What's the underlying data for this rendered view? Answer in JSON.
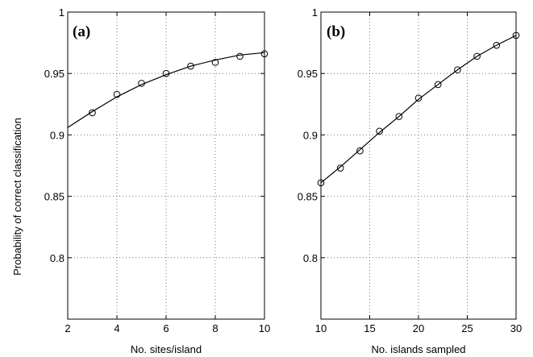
{
  "chart_data": [
    {
      "type": "scatter",
      "panel": "(a)",
      "xlabel": "No. sites/island",
      "ylabel": "Probability of correct classification",
      "xlim": [
        2,
        10
      ],
      "ylim": [
        0.75,
        1
      ],
      "xticks": [
        2,
        4,
        6,
        8,
        10
      ],
      "yticks": [
        0.8,
        0.85,
        0.9,
        0.95,
        1
      ],
      "grid": true,
      "points": {
        "x": [
          3,
          4,
          5,
          6,
          7,
          8,
          9,
          10
        ],
        "y": [
          0.918,
          0.933,
          0.942,
          0.95,
          0.956,
          0.959,
          0.964,
          0.966
        ]
      },
      "fit_curve": {
        "x": [
          2,
          3,
          4,
          5,
          6,
          7,
          8,
          9,
          10
        ],
        "y": [
          0.906,
          0.919,
          0.931,
          0.941,
          0.949,
          0.956,
          0.961,
          0.965,
          0.967
        ]
      }
    },
    {
      "type": "scatter",
      "panel": "(b)",
      "xlabel": "No. islands sampled",
      "ylabel": "",
      "xlim": [
        10,
        30
      ],
      "ylim": [
        0.75,
        1
      ],
      "xticks": [
        10,
        15,
        20,
        25,
        30
      ],
      "yticks": [
        0.8,
        0.85,
        0.9,
        0.95,
        1
      ],
      "grid": true,
      "points": {
        "x": [
          10,
          12,
          14,
          16,
          18,
          20,
          22,
          24,
          26,
          28,
          30
        ],
        "y": [
          0.861,
          0.873,
          0.887,
          0.903,
          0.915,
          0.93,
          0.941,
          0.953,
          0.964,
          0.973,
          0.981
        ]
      },
      "fit_curve": {
        "x": [
          10,
          12,
          14,
          16,
          18,
          20,
          22,
          24,
          26,
          28,
          30
        ],
        "y": [
          0.861,
          0.874,
          0.888,
          0.902,
          0.915,
          0.929,
          0.941,
          0.953,
          0.964,
          0.973,
          0.981
        ]
      }
    }
  ]
}
